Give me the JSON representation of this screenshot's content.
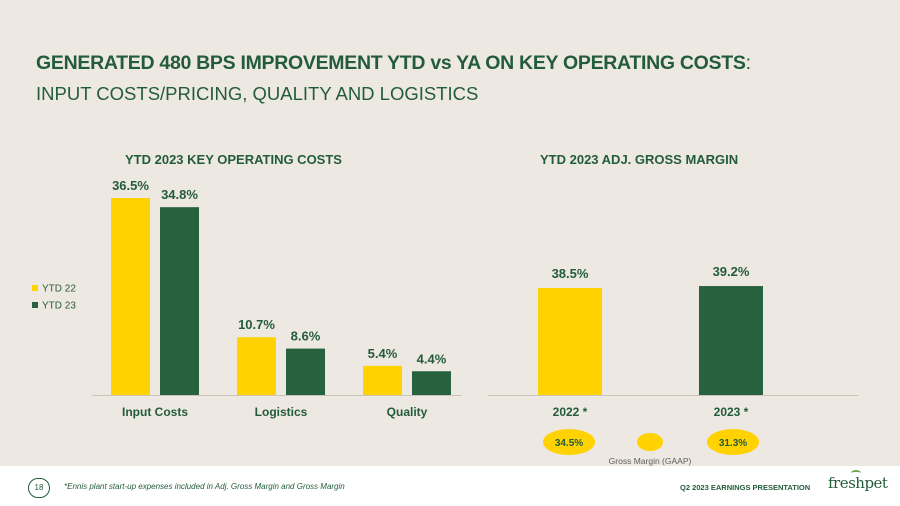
{
  "title": {
    "main": "GENERATED 480 BPS IMPROVEMENT YTD vs YA ON KEY OPERATING COSTS",
    "colon": ":",
    "subtitle": "INPUT COSTS/PRICING, QUALITY AND LOGISTICS"
  },
  "colors": {
    "yellow": "#ffd200",
    "green": "#27613e",
    "text_green": "#235c3a",
    "background": "#ede8e2"
  },
  "chart_data": [
    {
      "type": "bar",
      "title": "YTD 2023 KEY OPERATING COSTS",
      "categories": [
        "Input Costs",
        "Logistics",
        "Quality"
      ],
      "series": [
        {
          "name": "YTD 22",
          "values": [
            36.5,
            10.7,
            5.4
          ],
          "labels": [
            "36.5%",
            "10.7%",
            "5.4%"
          ],
          "color": "#ffd200"
        },
        {
          "name": "YTD 23",
          "values": [
            34.8,
            8.6,
            4.4
          ],
          "labels": [
            "34.8%",
            "8.6%",
            "4.4%"
          ],
          "color": "#27613e"
        }
      ],
      "ylim": [
        0,
        40
      ],
      "legend": "left"
    },
    {
      "type": "bar",
      "title": "YTD 2023 ADJ. GROSS MARGIN",
      "categories": [
        "2022 *",
        "2023 *"
      ],
      "values": [
        38.5,
        39.2
      ],
      "labels": [
        "38.5%",
        "39.2%"
      ],
      "colors": [
        "#ffd200",
        "#27613e"
      ],
      "ylim": [
        0,
        100
      ],
      "gaap": {
        "values": [
          "34.5%",
          "31.3%"
        ],
        "legend_label": "Gross Margin (GAAP)"
      }
    }
  ],
  "footer": {
    "page_number": "18",
    "footnote": "*Ennis plant start-up expenses included in Adj. Gross Margin and Gross Margin",
    "presentation": "Q2 2023 EARNINGS PRESENTATION",
    "brand": "freshpet"
  }
}
